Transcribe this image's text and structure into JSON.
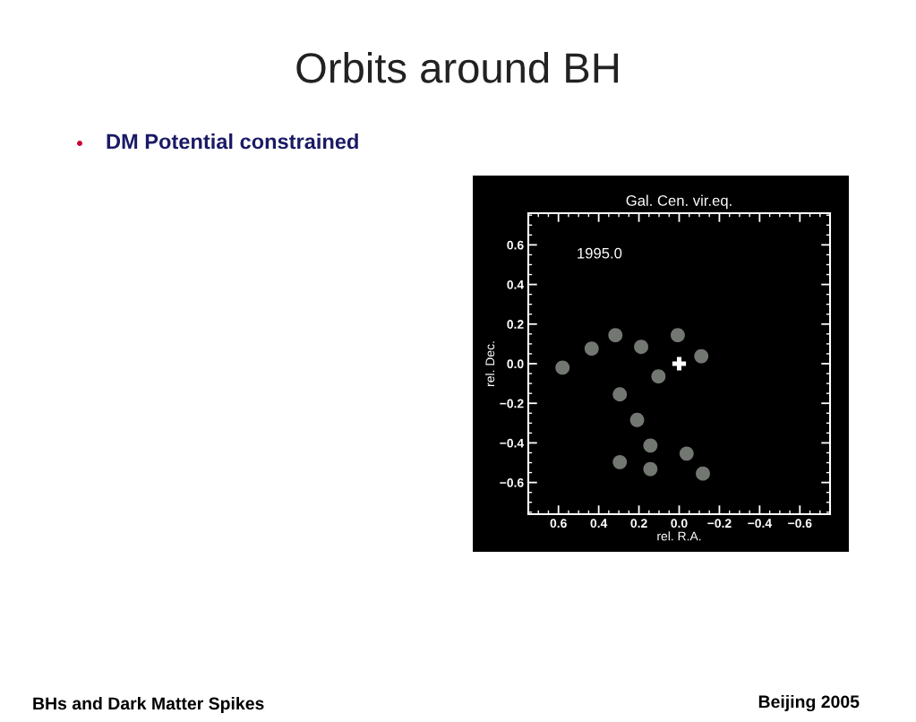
{
  "chart_data": {
    "type": "scatter",
    "title": "Gal. Cen. vir.eq.",
    "xlabel": "rel. R.A.",
    "ylabel": "rel. Dec.",
    "annotations": [
      "1995.0",
      "Orbits around BH",
      "DM Potential constrained",
      "BHs and Dark Matter Spikes",
      "Beijing 2005"
    ],
    "xlim": [
      0.75,
      -0.75
    ],
    "ylim": [
      -0.76,
      0.76
    ],
    "xticks": [
      {
        "value": 0.6,
        "label": "0.6"
      },
      {
        "value": 0.4,
        "label": "0.4"
      },
      {
        "value": 0.2,
        "label": "0.2"
      },
      {
        "value": 0.0,
        "label": "0.0"
      },
      {
        "value": -0.2,
        "label": "−0.2"
      },
      {
        "value": -0.4,
        "label": "−0.4"
      },
      {
        "value": -0.6,
        "label": "−0.6"
      }
    ],
    "yticks": [
      {
        "value": -0.6,
        "label": "−0.6"
      },
      {
        "value": -0.4,
        "label": "−0.4"
      },
      {
        "value": -0.2,
        "label": "−0.2"
      },
      {
        "value": 0.0,
        "label": "0.0"
      },
      {
        "value": 0.2,
        "label": "0.2"
      },
      {
        "value": 0.4,
        "label": "0.4"
      },
      {
        "value": 0.6,
        "label": "0.6"
      }
    ],
    "grid": false,
    "legend": false,
    "marker": "circle",
    "series": [
      {
        "color": "#9a9f98",
        "x": [
          0.58,
          0.435,
          0.317,
          0.189,
          0.007,
          -0.11,
          0.103,
          0.295,
          0.209,
          0.143,
          -0.037,
          0.295,
          0.143,
          -0.118
        ],
        "values": [
          -0.02,
          0.076,
          0.144,
          0.085,
          0.144,
          0.038,
          -0.064,
          -0.155,
          -0.284,
          -0.413,
          -0.454,
          -0.497,
          -0.532,
          -0.555
        ]
      },
      {
        "color": "#ffffff",
        "marker": "cross",
        "x": [
          0.0
        ],
        "values": [
          0.0
        ]
      }
    ]
  }
}
